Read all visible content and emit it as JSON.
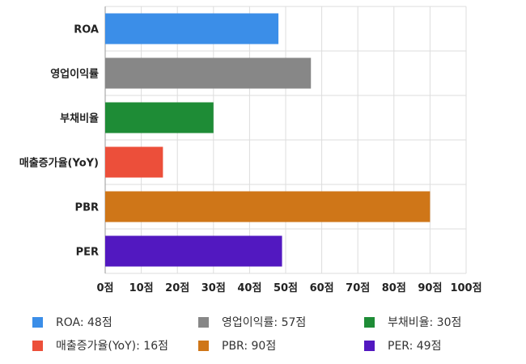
{
  "chart_data": {
    "type": "bar",
    "orientation": "horizontal",
    "categories": [
      "ROA",
      "영업이익률",
      "부채비율",
      "매출증가율(YoY)",
      "PBR",
      "PER"
    ],
    "values": [
      48,
      57,
      30,
      16,
      90,
      49
    ],
    "colors": [
      "#3b8ee8",
      "#878787",
      "#1e8c36",
      "#ec4f3a",
      "#cf7618",
      "#5218c0"
    ],
    "xlim": [
      0,
      100
    ],
    "xticks": [
      0,
      10,
      20,
      30,
      40,
      50,
      60,
      70,
      80,
      90,
      100
    ],
    "tick_suffix": "점",
    "grid": true,
    "legend_position": "bottom"
  },
  "legend": [
    {
      "label": "ROA: 48점",
      "color": "#3b8ee8"
    },
    {
      "label": "영업이익률: 57점",
      "color": "#878787"
    },
    {
      "label": "부채비율: 30점",
      "color": "#1e8c36"
    },
    {
      "label": "매출증가율(YoY): 16점",
      "color": "#ec4f3a"
    },
    {
      "label": "PBR: 90점",
      "color": "#cf7618"
    },
    {
      "label": "PER: 49점",
      "color": "#5218c0"
    }
  ]
}
